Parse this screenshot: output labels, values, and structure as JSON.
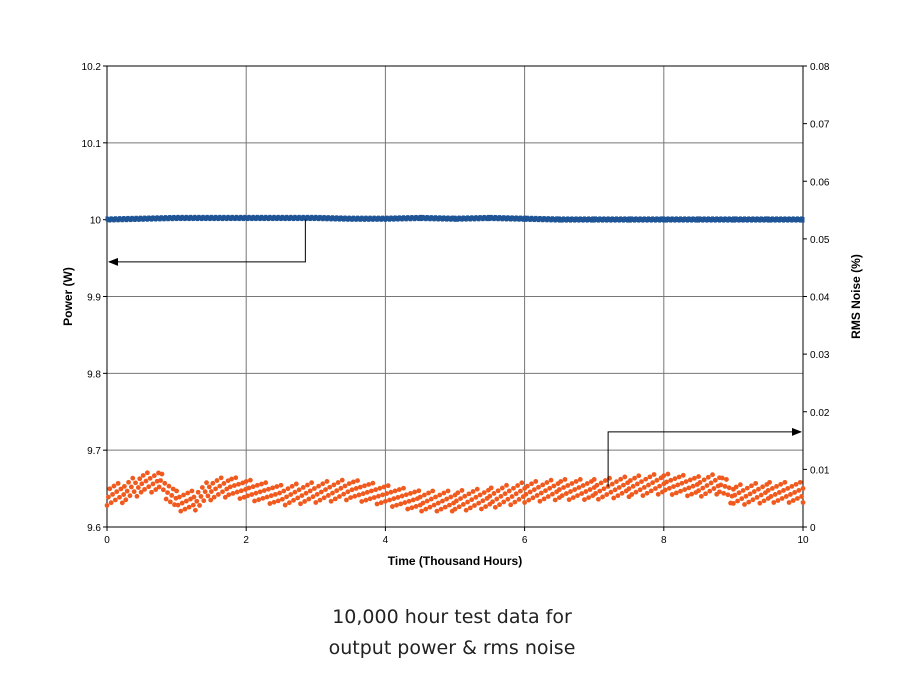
{
  "caption": {
    "line1": "10,000 hour test data for",
    "line2": "output power & rms noise"
  },
  "chart_data": {
    "type": "scatter",
    "title": "",
    "xlabel": "Time (Thousand Hours)",
    "ylabel_left": "Power (W)",
    "ylabel_right": "RMS Noise (%)",
    "xlim": [
      0,
      10
    ],
    "ylim_left": [
      9.6,
      10.2
    ],
    "ylim_right": [
      0,
      0.08
    ],
    "x_ticks": [
      "0",
      "2",
      "4",
      "6",
      "8",
      "10"
    ],
    "y_left_ticks": [
      "9.6",
      "9.7",
      "9.8",
      "9.9",
      "10",
      "10.1",
      "10.2"
    ],
    "y_right_ticks": [
      "0",
      "0.01",
      "0.02",
      "0.03",
      "0.04",
      "0.05",
      "0.06",
      "0.07",
      "0.08"
    ],
    "grid": true,
    "series": [
      {
        "axis": "left",
        "color": "#1f5596",
        "x": [
          0,
          0.5,
          1,
          1.5,
          2,
          2.5,
          3,
          3.5,
          4,
          4.5,
          5,
          5.5,
          6,
          6.5,
          7,
          7.5,
          8,
          8.5,
          9,
          9.5,
          10
        ],
        "values": [
          10.001,
          10.002,
          10.003,
          10.003,
          10.003,
          10.003,
          10.003,
          10.002,
          10.002,
          10.003,
          10.002,
          10.003,
          10.002,
          10.001,
          10.001,
          10.001,
          10.001,
          10.001,
          10.001,
          10.001,
          10.001
        ]
      },
      {
        "axis": "right",
        "color": "#f05a1e",
        "x": [
          0,
          0.25,
          0.5,
          0.75,
          1,
          1.25,
          1.5,
          1.75,
          2,
          2.5,
          3,
          3.5,
          4,
          4.5,
          5,
          5.5,
          6,
          6.5,
          7,
          7.5,
          8,
          8.5,
          8.8,
          9,
          9.5,
          10
        ],
        "values": [
          0.0055,
          0.006,
          0.0075,
          0.008,
          0.0045,
          0.0045,
          0.0065,
          0.007,
          0.0065,
          0.0055,
          0.006,
          0.0065,
          0.0055,
          0.0045,
          0.0045,
          0.005,
          0.006,
          0.0065,
          0.0065,
          0.007,
          0.0075,
          0.007,
          0.0075,
          0.0055,
          0.006,
          0.006
        ]
      }
    ],
    "annotations": [
      {
        "type": "arrow",
        "points_to": "left-axis",
        "from": [
          2.85,
          10.0
        ],
        "to": [
          0,
          9.945
        ]
      },
      {
        "type": "arrow",
        "points_to": "right-axis",
        "from": [
          7.2,
          0.007
        ],
        "to": [
          10,
          0.0165
        ]
      }
    ]
  }
}
